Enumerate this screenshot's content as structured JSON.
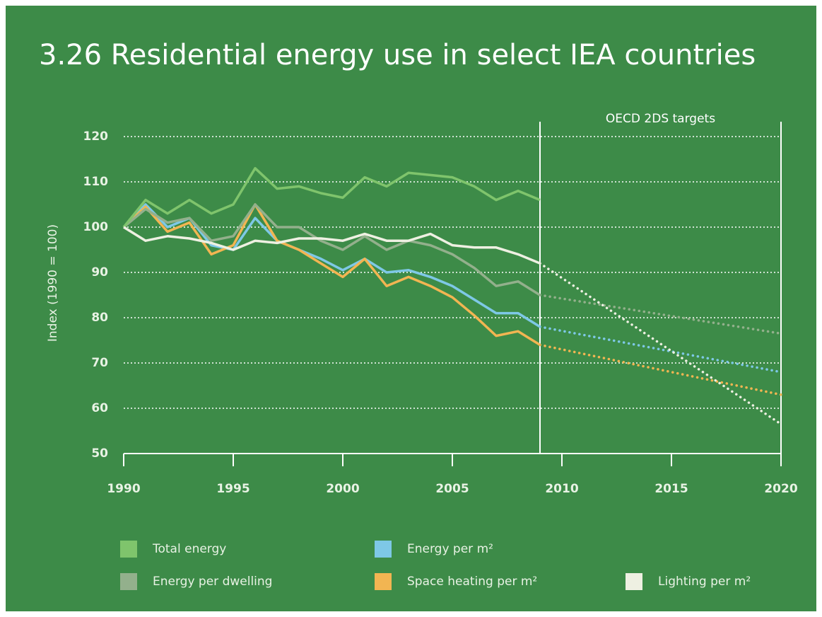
{
  "chart_data": {
    "type": "line",
    "title": "3.26 Residential energy use in select IEA countries",
    "y_label": "Index (1990 = 100)",
    "annotation": "OECD 2DS targets",
    "divider_x": 2009,
    "x": [
      1990,
      1991,
      1992,
      1993,
      1994,
      1995,
      1996,
      1997,
      1998,
      1999,
      2000,
      2001,
      2002,
      2003,
      2004,
      2005,
      2006,
      2007,
      2008,
      2009
    ],
    "target_x": [
      2009,
      2020
    ],
    "series": [
      {
        "name": "Total energy",
        "color": "#7fc46c",
        "values": [
          100,
          106,
          103,
          106,
          103,
          105,
          113,
          108.5,
          109,
          107.5,
          106.5,
          111,
          109,
          112,
          111.5,
          111,
          109,
          106,
          108,
          106
        ]
      },
      {
        "name": "Energy per m²",
        "color": "#7ec8e6",
        "values": [
          100,
          105,
          100,
          102,
          96,
          95,
          102,
          97,
          95,
          93,
          90.5,
          93,
          90,
          90.5,
          89,
          87,
          84,
          81,
          81,
          78
        ],
        "target_values": [
          78,
          68
        ]
      },
      {
        "name": "Energy per dwelling",
        "color": "#93b08c",
        "values": [
          100,
          104,
          101,
          102,
          97,
          98,
          105,
          100,
          100,
          97,
          95,
          98,
          95,
          97,
          96,
          94,
          91,
          87,
          88,
          85
        ],
        "target_values": [
          85,
          76.5
        ]
      },
      {
        "name": "Space heating per m²",
        "color": "#f2b552",
        "values": [
          100,
          104.5,
          99,
          101,
          94,
          96,
          105,
          97,
          95,
          92,
          89,
          93,
          87,
          89,
          87,
          84.5,
          80.5,
          76,
          77,
          74
        ],
        "target_values": [
          74,
          63
        ]
      },
      {
        "name": "Lighting per m²",
        "color": "#eef0e2",
        "values": [
          100,
          97,
          98,
          97.5,
          96.5,
          95,
          97,
          96.5,
          97.5,
          97.5,
          97,
          98.5,
          97,
          97,
          98.5,
          96,
          95.5,
          95.5,
          94,
          92
        ],
        "target_values": [
          92,
          56.5
        ]
      }
    ],
    "xlim": [
      1990,
      2020
    ],
    "xticks": [
      1990,
      1995,
      2000,
      2005,
      2010,
      2015,
      2020
    ],
    "ylim": [
      50,
      120
    ],
    "yticks": [
      50,
      60,
      70,
      80,
      90,
      100,
      110,
      120
    ],
    "grid": true
  }
}
